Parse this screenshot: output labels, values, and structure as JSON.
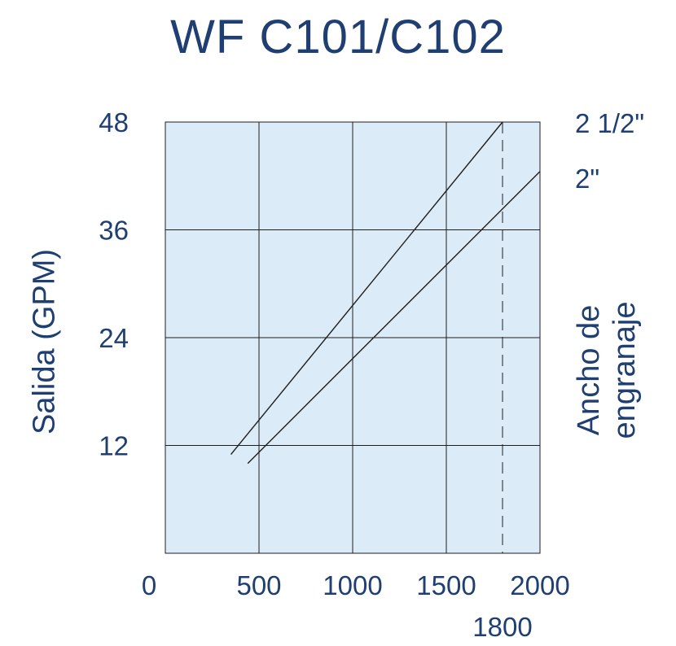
{
  "chart_data": {
    "type": "line",
    "title": "WF C101/C102",
    "ylabel": "Salida (GPM)",
    "right_label": [
      "Ancho de",
      "engranaje"
    ],
    "x_ticks": [
      0,
      500,
      1000,
      1500,
      2000
    ],
    "x_tick_labels": [
      "0",
      "500",
      "1000",
      "1500",
      "2000"
    ],
    "y_ticks": [
      12,
      24,
      36,
      48
    ],
    "y_tick_labels": [
      "12",
      "24",
      "36",
      "48"
    ],
    "xlim": [
      0,
      2000
    ],
    "ylim": [
      0,
      48
    ],
    "grid": true,
    "marker_line": {
      "x": 1800,
      "label": "1800",
      "style": "dashed"
    },
    "series": [
      {
        "name": "2 1/2\"",
        "x": [
          350,
          1800
        ],
        "y": [
          11,
          48
        ]
      },
      {
        "name": "2\"",
        "x": [
          440,
          2000
        ],
        "y": [
          10,
          42.5
        ]
      }
    ],
    "colors": {
      "plot_bg": "#dcebf8",
      "grid": "#1e1e1e",
      "text": "#1f3f73",
      "line": "#1e1e1e"
    }
  }
}
